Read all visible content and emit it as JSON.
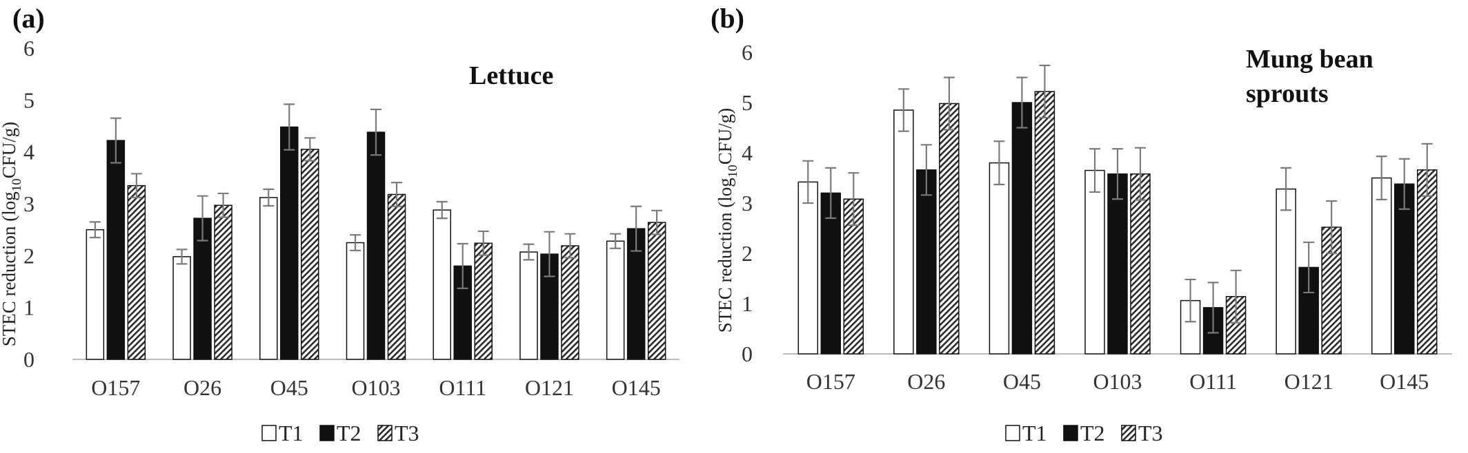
{
  "chart_data": [
    {
      "type": "bar",
      "panel": "(a)",
      "title": "Lettuce",
      "ylabel_main": "STEC reduction (log",
      "ylabel_sub": "10",
      "ylabel_tail": "CFU/g)",
      "ylim": [
        0,
        6
      ],
      "yticks": [
        "0",
        "1",
        "2",
        "3",
        "4",
        "5",
        "6"
      ],
      "grid": false,
      "legend_position": "bottom",
      "categories": [
        "O157",
        "O26",
        "O45",
        "O103",
        "O111",
        "O121",
        "O145"
      ],
      "series": [
        {
          "name": "T1",
          "style": "white",
          "values": [
            2.5,
            1.98,
            3.12,
            2.25,
            2.88,
            2.07,
            2.28
          ],
          "errors": [
            0.15,
            0.14,
            0.16,
            0.15,
            0.16,
            0.15,
            0.14
          ]
        },
        {
          "name": "T2",
          "style": "black",
          "values": [
            4.22,
            2.72,
            4.48,
            4.38,
            1.8,
            2.03,
            2.52
          ],
          "errors": [
            0.43,
            0.43,
            0.44,
            0.44,
            0.43,
            0.43,
            0.43
          ]
        },
        {
          "name": "T3",
          "style": "hatch",
          "values": [
            3.35,
            2.97,
            4.05,
            3.18,
            2.24,
            2.19,
            2.64
          ],
          "errors": [
            0.23,
            0.23,
            0.22,
            0.23,
            0.23,
            0.23,
            0.23
          ]
        }
      ]
    },
    {
      "type": "bar",
      "panel": "(b)",
      "title": "Mung bean sprouts",
      "title_lines": [
        "Mung bean",
        "sprouts"
      ],
      "ylabel_main": "STEC reduction (log",
      "ylabel_sub": "10",
      "ylabel_tail": "CFU/g)",
      "ylim": [
        0,
        6
      ],
      "yticks": [
        "0",
        "1",
        "2",
        "3",
        "4",
        "5",
        "6"
      ],
      "grid": false,
      "legend_position": "bottom",
      "categories": [
        "O157",
        "O26",
        "O45",
        "O103",
        "O111",
        "O121",
        "O145"
      ],
      "series": [
        {
          "name": "T1",
          "style": "white",
          "values": [
            3.42,
            4.85,
            3.8,
            3.65,
            1.06,
            3.28,
            3.5
          ],
          "errors": [
            0.42,
            0.42,
            0.43,
            0.43,
            0.42,
            0.42,
            0.43
          ]
        },
        {
          "name": "T2",
          "style": "black",
          "values": [
            3.2,
            3.66,
            5.0,
            3.58,
            0.92,
            1.72,
            3.38
          ],
          "errors": [
            0.5,
            0.5,
            0.5,
            0.5,
            0.5,
            0.5,
            0.5
          ]
        },
        {
          "name": "T3",
          "style": "hatch",
          "values": [
            3.08,
            4.98,
            5.22,
            3.58,
            1.14,
            2.52,
            3.66
          ],
          "errors": [
            0.52,
            0.52,
            0.52,
            0.52,
            0.52,
            0.52,
            0.52
          ]
        }
      ]
    }
  ]
}
